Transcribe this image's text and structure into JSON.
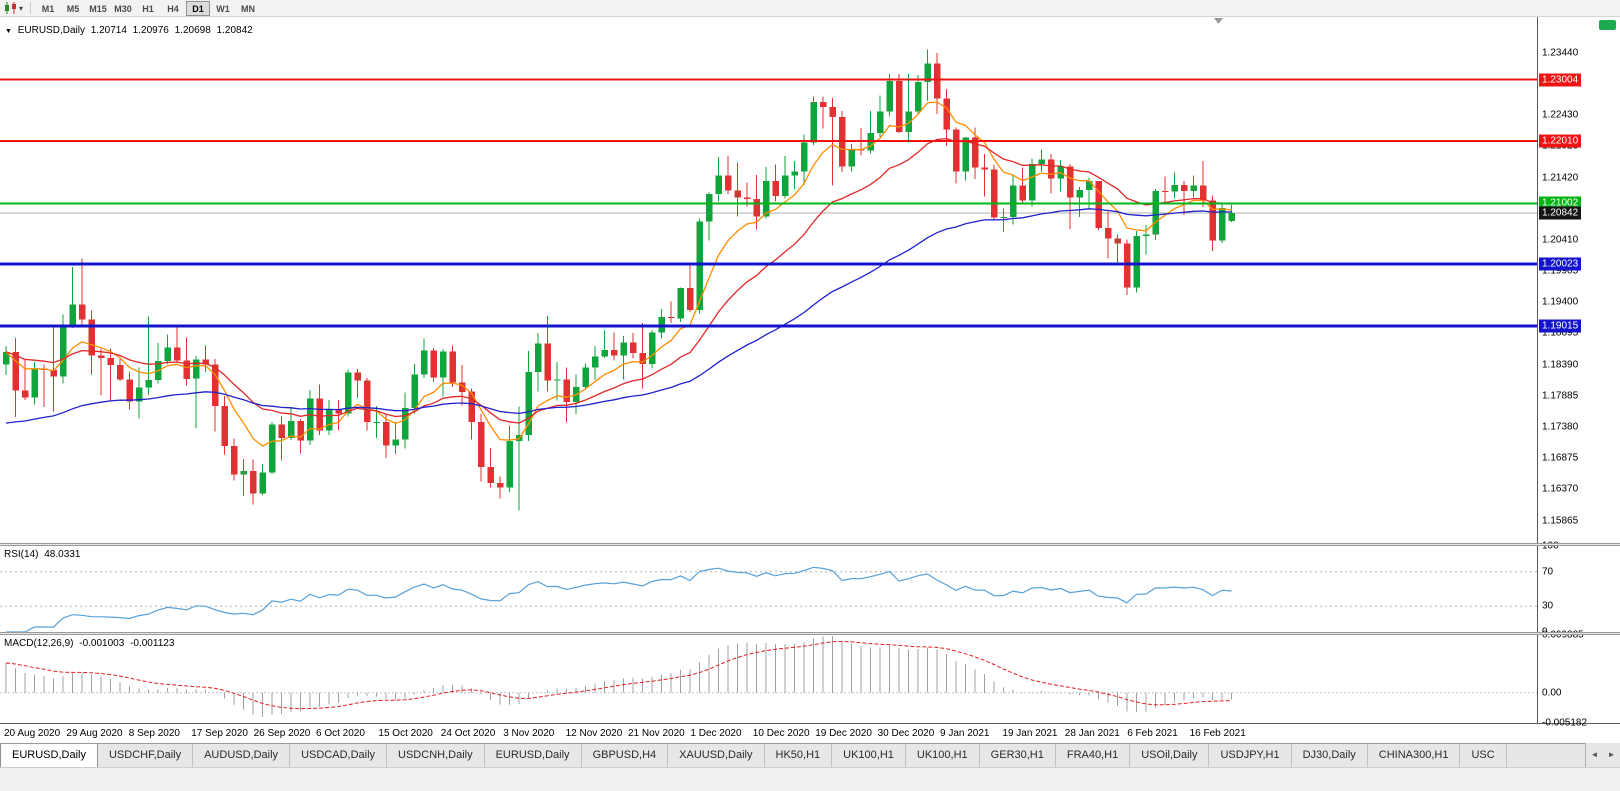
{
  "icons": {
    "dropdown": "▾",
    "collapse": "▼",
    "scroll_left": "◄",
    "scroll_right": "►"
  },
  "toolbar": {
    "timeframes": [
      "M1",
      "M5",
      "M15",
      "M30",
      "H1",
      "H4",
      "D1",
      "W1",
      "MN"
    ],
    "active": "D1"
  },
  "main_chart": {
    "symbol": "EURUSD,Daily",
    "open": "1.20714",
    "high": "1.20976",
    "low": "1.20698",
    "close": "1.20842"
  },
  "rsi_panel": {
    "name": "RSI(14)",
    "value": "48.0331",
    "axis": [
      {
        "label": "100",
        "value": 100
      },
      {
        "label": "70",
        "value": 70
      },
      {
        "label": "30",
        "value": 30
      },
      {
        "label": "0",
        "value": 0
      }
    ],
    "levels": [
      70,
      30
    ]
  },
  "macd_panel": {
    "name": "MACD(12,26,9)",
    "main_value": "-0.001003",
    "signal_value": "-0.001123",
    "axis": [
      {
        "label": "0.009885",
        "value": 0.009885
      },
      {
        "label": "0.00",
        "value": 0
      },
      {
        "label": "-0.005182",
        "value": -0.005182
      }
    ]
  },
  "price_axis": [
    "1.23440",
    "1.22935",
    "1.22430",
    "1.21925",
    "1.21420",
    "1.20915",
    "1.20410",
    "1.19905",
    "1.19400",
    "1.18895",
    "1.18390",
    "1.17885",
    "1.17380",
    "1.16875",
    "1.16370",
    "1.15865"
  ],
  "date_axis": [
    "20 Aug 2020",
    "29 Aug 2020",
    "8 Sep 2020",
    "17 Sep 2020",
    "26 Sep 2020",
    "6 Oct 2020",
    "15 Oct 2020",
    "24 Oct 2020",
    "3 Nov 2020",
    "12 Nov 2020",
    "21 Nov 2020",
    "1 Dec 2020",
    "10 Dec 2020",
    "19 Dec 2020",
    "30 Dec 2020",
    "9 Jan 2021",
    "19 Jan 2021",
    "28 Jan 2021",
    "6 Feb 2021",
    "16 Feb 2021"
  ],
  "tabs": {
    "active_index": 0,
    "items": [
      "EURUSD,Daily",
      "USDCHF,Daily",
      "AUDUSD,Daily",
      "USDCAD,Daily",
      "USDCNH,Daily",
      "EURUSD,Daily",
      "GBPUSD,H4",
      "XAUUSD,Daily",
      "HK50,H1",
      "UK100,H1",
      "UK100,H1",
      "GER30,H1",
      "FRA40,H1",
      "USOil,Daily",
      "USDJPY,H1",
      "DJ30,Daily",
      "CHINA300,H1",
      "USC"
    ]
  },
  "chart_data": {
    "type": "candlestick",
    "symbol": "EURUSD",
    "timeframe": "Daily",
    "bull_color": "#10a43c",
    "bear_color": "#e03232",
    "price_range": {
      "top": 1.2402,
      "bottom": 1.155
    },
    "moving_averages": [
      {
        "period": 8,
        "color": "#ff8c00"
      },
      {
        "period": 20,
        "color": "#e02828"
      },
      {
        "period": 55,
        "color": "#2020cc"
      }
    ],
    "horizontal_lines": [
      {
        "price": 1.23004,
        "label": "1.23004",
        "color": "#ee1414",
        "width": 2
      },
      {
        "price": 1.2201,
        "label": "1.22010",
        "color": "#ee1414",
        "width": 2
      },
      {
        "price": 1.21002,
        "label": "1.21002",
        "color": "#00b414",
        "width": 2
      },
      {
        "price": 1.20023,
        "label": "1.20023",
        "color": "#1414cc",
        "width": 3
      },
      {
        "price": 1.19015,
        "label": "1.19015",
        "color": "#1414cc",
        "width": 3
      }
    ],
    "current_price": {
      "price": 1.20842,
      "label": "1.20842",
      "line_color": "#b0b0b0",
      "box_color": "#141414"
    },
    "rsi": {
      "period": 14,
      "color": "#58a0d8",
      "last": 48.0331
    },
    "macd": {
      "fast": 12,
      "slow": 26,
      "signal": 9,
      "hist_color": "#a0a0a0",
      "signal_color": "#e02020",
      "last_main": -0.001003,
      "last_signal": -0.001123
    },
    "candles": [
      [
        "2020-08-20",
        1.1839,
        1.1869,
        1.1822,
        1.1859
      ],
      [
        "2020-08-21",
        1.1859,
        1.1882,
        1.1754,
        1.1797
      ],
      [
        "2020-08-24",
        1.1797,
        1.1848,
        1.1782,
        1.1786
      ],
      [
        "2020-08-25",
        1.1786,
        1.1843,
        1.1774,
        1.1833
      ],
      [
        "2020-08-26",
        1.1833,
        1.1839,
        1.177,
        1.183
      ],
      [
        "2020-08-27",
        1.183,
        1.19,
        1.1763,
        1.182
      ],
      [
        "2020-08-28",
        1.182,
        1.192,
        1.1808,
        1.1903
      ],
      [
        "2020-08-31",
        1.1903,
        1.1997,
        1.1898,
        1.1936
      ],
      [
        "2020-09-01",
        1.1936,
        1.2011,
        1.1901,
        1.1912
      ],
      [
        "2020-09-02",
        1.1912,
        1.1927,
        1.1823,
        1.1854
      ],
      [
        "2020-09-03",
        1.1854,
        1.1864,
        1.1789,
        1.185
      ],
      [
        "2020-09-04",
        1.185,
        1.1865,
        1.1781,
        1.1838
      ],
      [
        "2020-09-07",
        1.1838,
        1.1848,
        1.1812,
        1.1815
      ],
      [
        "2020-09-08",
        1.1815,
        1.1827,
        1.1766,
        1.1779
      ],
      [
        "2020-09-09",
        1.1779,
        1.1834,
        1.1752,
        1.1802
      ],
      [
        "2020-09-10",
        1.1802,
        1.1917,
        1.179,
        1.1814
      ],
      [
        "2020-09-11",
        1.1814,
        1.1874,
        1.1808,
        1.1845
      ],
      [
        "2020-09-14",
        1.1845,
        1.1888,
        1.184,
        1.1867
      ],
      [
        "2020-09-15",
        1.1867,
        1.1899,
        1.1842,
        1.1846
      ],
      [
        "2020-09-16",
        1.1846,
        1.1883,
        1.1805,
        1.1816
      ],
      [
        "2020-09-17",
        1.1816,
        1.1853,
        1.1736,
        1.1847
      ],
      [
        "2020-09-18",
        1.1847,
        1.187,
        1.1827,
        1.1839
      ],
      [
        "2020-09-21",
        1.1839,
        1.1848,
        1.1731,
        1.1772
      ],
      [
        "2020-09-22",
        1.1772,
        1.1788,
        1.1693,
        1.1707
      ],
      [
        "2020-09-23",
        1.1707,
        1.1719,
        1.1651,
        1.1661
      ],
      [
        "2020-09-24",
        1.1661,
        1.1686,
        1.1626,
        1.1667
      ],
      [
        "2020-09-25",
        1.1667,
        1.1685,
        1.1612,
        1.163
      ],
      [
        "2020-09-28",
        1.163,
        1.1678,
        1.1628,
        1.1664
      ],
      [
        "2020-09-29",
        1.1664,
        1.1746,
        1.1662,
        1.1742
      ],
      [
        "2020-09-30",
        1.1742,
        1.1755,
        1.1684,
        1.172
      ],
      [
        "2020-10-01",
        1.172,
        1.177,
        1.1717,
        1.1748
      ],
      [
        "2020-10-02",
        1.1748,
        1.1751,
        1.1695,
        1.1716
      ],
      [
        "2020-10-05",
        1.1716,
        1.1798,
        1.1709,
        1.1784
      ],
      [
        "2020-10-06",
        1.1784,
        1.1807,
        1.1725,
        1.1732
      ],
      [
        "2020-10-07",
        1.1732,
        1.1782,
        1.1725,
        1.1766
      ],
      [
        "2020-10-08",
        1.1766,
        1.1782,
        1.1733,
        1.176
      ],
      [
        "2020-10-09",
        1.176,
        1.1831,
        1.1755,
        1.1826
      ],
      [
        "2020-10-12",
        1.1826,
        1.1832,
        1.1786,
        1.1813
      ],
      [
        "2020-10-13",
        1.1813,
        1.1817,
        1.1732,
        1.1746
      ],
      [
        "2020-10-14",
        1.1746,
        1.1772,
        1.172,
        1.1746
      ],
      [
        "2020-10-15",
        1.1746,
        1.1758,
        1.1688,
        1.1708
      ],
      [
        "2020-10-16",
        1.1708,
        1.1747,
        1.1694,
        1.1718
      ],
      [
        "2020-10-19",
        1.1718,
        1.1794,
        1.1703,
        1.1769
      ],
      [
        "2020-10-20",
        1.1769,
        1.184,
        1.176,
        1.1823
      ],
      [
        "2020-10-21",
        1.1823,
        1.1881,
        1.1817,
        1.1862
      ],
      [
        "2020-10-22",
        1.1862,
        1.1866,
        1.1811,
        1.1818
      ],
      [
        "2020-10-23",
        1.1818,
        1.1864,
        1.1787,
        1.186
      ],
      [
        "2020-10-26",
        1.186,
        1.187,
        1.1803,
        1.181
      ],
      [
        "2020-10-27",
        1.181,
        1.1838,
        1.1773,
        1.1795
      ],
      [
        "2020-10-28",
        1.1795,
        1.18,
        1.1718,
        1.1746
      ],
      [
        "2020-10-29",
        1.1746,
        1.1759,
        1.165,
        1.1673
      ],
      [
        "2020-10-30",
        1.1673,
        1.1704,
        1.164,
        1.1647
      ],
      [
        "2020-11-02",
        1.1647,
        1.1658,
        1.1622,
        1.164
      ],
      [
        "2020-11-03",
        1.164,
        1.174,
        1.1633,
        1.1715
      ],
      [
        "2020-11-04",
        1.1715,
        1.1771,
        1.1603,
        1.1725
      ],
      [
        "2020-11-05",
        1.1725,
        1.1861,
        1.1715,
        1.1827
      ],
      [
        "2020-11-06",
        1.1827,
        1.189,
        1.1795,
        1.1873
      ],
      [
        "2020-11-09",
        1.1873,
        1.1918,
        1.1795,
        1.1813
      ],
      [
        "2020-11-10",
        1.1813,
        1.1843,
        1.1781,
        1.1815
      ],
      [
        "2020-11-11",
        1.1815,
        1.1834,
        1.1745,
        1.1778
      ],
      [
        "2020-11-12",
        1.1778,
        1.1823,
        1.1759,
        1.1803
      ],
      [
        "2020-11-13",
        1.1803,
        1.1841,
        1.1799,
        1.1834
      ],
      [
        "2020-11-16",
        1.1834,
        1.1869,
        1.1814,
        1.1852
      ],
      [
        "2020-11-17",
        1.1852,
        1.1894,
        1.185,
        1.1863
      ],
      [
        "2020-11-18",
        1.1863,
        1.1891,
        1.1846,
        1.1854
      ],
      [
        "2020-11-19",
        1.1854,
        1.1885,
        1.1815,
        1.1875
      ],
      [
        "2020-11-20",
        1.1875,
        1.189,
        1.1849,
        1.1858
      ],
      [
        "2020-11-23",
        1.1858,
        1.1906,
        1.18,
        1.184
      ],
      [
        "2020-11-24",
        1.184,
        1.1895,
        1.1833,
        1.1891
      ],
      [
        "2020-11-25",
        1.1891,
        1.1929,
        1.1881,
        1.1916
      ],
      [
        "2020-11-26",
        1.1916,
        1.1941,
        1.1906,
        1.1914
      ],
      [
        "2020-11-27",
        1.1914,
        1.1964,
        1.1908,
        1.1963
      ],
      [
        "2020-11-30",
        1.1963,
        1.2003,
        1.1924,
        1.1927
      ],
      [
        "2020-12-01",
        1.1927,
        1.2076,
        1.1922,
        1.2071
      ],
      [
        "2020-12-02",
        1.2071,
        1.2118,
        1.204,
        1.2115
      ],
      [
        "2020-12-03",
        1.2115,
        1.2175,
        1.2103,
        1.2145
      ],
      [
        "2020-12-04",
        1.2145,
        1.2177,
        1.2115,
        1.2121
      ],
      [
        "2020-12-07",
        1.2121,
        1.2166,
        1.2079,
        1.211
      ],
      [
        "2020-12-08",
        1.211,
        1.2134,
        1.2095,
        1.2107
      ],
      [
        "2020-12-09",
        1.2107,
        1.2146,
        1.2058,
        1.2079
      ],
      [
        "2020-12-10",
        1.2079,
        1.2159,
        1.2076,
        1.2136
      ],
      [
        "2020-12-11",
        1.2136,
        1.2163,
        1.2103,
        1.2112
      ],
      [
        "2020-12-14",
        1.2112,
        1.2177,
        1.2108,
        1.2145
      ],
      [
        "2020-12-15",
        1.2145,
        1.2169,
        1.2123,
        1.2152
      ],
      [
        "2020-12-16",
        1.2152,
        1.2212,
        1.213,
        1.2199
      ],
      [
        "2020-12-17",
        1.2199,
        1.2273,
        1.2195,
        1.2264
      ],
      [
        "2020-12-18",
        1.2264,
        1.2273,
        1.2221,
        1.2256
      ],
      [
        "2020-12-21",
        1.2256,
        1.2271,
        1.2129,
        1.224
      ],
      [
        "2020-12-22",
        1.224,
        1.225,
        1.2151,
        1.216
      ],
      [
        "2020-12-23",
        1.216,
        1.2196,
        1.2152,
        1.2187
      ],
      [
        "2020-12-24",
        1.2187,
        1.2222,
        1.2178,
        1.2186
      ],
      [
        "2020-12-28",
        1.2186,
        1.225,
        1.2181,
        1.2214
      ],
      [
        "2020-12-29",
        1.2214,
        1.2275,
        1.2208,
        1.2249
      ],
      [
        "2020-12-30",
        1.2249,
        1.231,
        1.2241,
        1.2298
      ],
      [
        "2020-12-31",
        1.2298,
        1.231,
        1.2214,
        1.2216
      ],
      [
        "2021-01-04",
        1.2216,
        1.231,
        1.2199,
        1.2249
      ],
      [
        "2021-01-05",
        1.2249,
        1.2308,
        1.2244,
        1.2297
      ],
      [
        "2021-01-06",
        1.2297,
        1.2349,
        1.2266,
        1.2327
      ],
      [
        "2021-01-07",
        1.2327,
        1.2344,
        1.2245,
        1.227
      ],
      [
        "2021-01-08",
        1.227,
        1.2285,
        1.2193,
        1.222
      ],
      [
        "2021-01-11",
        1.222,
        1.2223,
        1.2132,
        1.2152
      ],
      [
        "2021-01-12",
        1.2152,
        1.2208,
        1.2137,
        1.2207
      ],
      [
        "2021-01-13",
        1.2207,
        1.2223,
        1.214,
        1.2158
      ],
      [
        "2021-01-14",
        1.2158,
        1.218,
        1.2111,
        1.2155
      ],
      [
        "2021-01-15",
        1.2155,
        1.2163,
        1.2075,
        1.2077
      ],
      [
        "2021-01-18",
        1.2077,
        1.2092,
        1.2054,
        1.2078
      ],
      [
        "2021-01-19",
        1.2078,
        1.2145,
        1.2066,
        1.2129
      ],
      [
        "2021-01-20",
        1.2129,
        1.2158,
        1.2101,
        1.2105
      ],
      [
        "2021-01-21",
        1.2105,
        1.2173,
        1.2095,
        1.2164
      ],
      [
        "2021-01-22",
        1.2164,
        1.2187,
        1.2151,
        1.2171
      ],
      [
        "2021-01-25",
        1.2171,
        1.218,
        1.2116,
        1.214
      ],
      [
        "2021-01-26",
        1.214,
        1.217,
        1.2119,
        1.216
      ],
      [
        "2021-01-27",
        1.216,
        1.2164,
        1.2059,
        1.211
      ],
      [
        "2021-01-28",
        1.211,
        1.2127,
        1.2078,
        1.2122
      ],
      [
        "2021-01-29",
        1.2122,
        1.2142,
        1.2092,
        1.2136
      ],
      [
        "2021-02-01",
        1.2136,
        1.2136,
        1.2056,
        1.206
      ],
      [
        "2021-02-02",
        1.206,
        1.2087,
        1.2011,
        1.2043
      ],
      [
        "2021-02-03",
        1.2043,
        1.205,
        1.2003,
        1.2035
      ],
      [
        "2021-02-04",
        1.2035,
        1.2042,
        1.1952,
        1.1964
      ],
      [
        "2021-02-05",
        1.1964,
        1.2055,
        1.1956,
        1.2047
      ],
      [
        "2021-02-08",
        1.2047,
        1.2065,
        1.2017,
        1.205
      ],
      [
        "2021-02-09",
        1.205,
        1.2123,
        1.2041,
        1.212
      ],
      [
        "2021-02-10",
        1.212,
        1.2144,
        1.21,
        1.2119
      ],
      [
        "2021-02-11",
        1.2119,
        1.215,
        1.2108,
        1.213
      ],
      [
        "2021-02-12",
        1.213,
        1.2136,
        1.2081,
        1.212
      ],
      [
        "2021-02-15",
        1.212,
        1.2145,
        1.211,
        1.2129
      ],
      [
        "2021-02-16",
        1.2129,
        1.2169,
        1.2094,
        1.2105
      ],
      [
        "2021-02-17",
        1.2105,
        1.2113,
        1.2023,
        1.204
      ],
      [
        "2021-02-18",
        1.204,
        1.2098,
        1.2036,
        1.2093
      ],
      [
        "2021-02-19",
        1.20714,
        1.20976,
        1.20698,
        1.20842
      ]
    ]
  }
}
